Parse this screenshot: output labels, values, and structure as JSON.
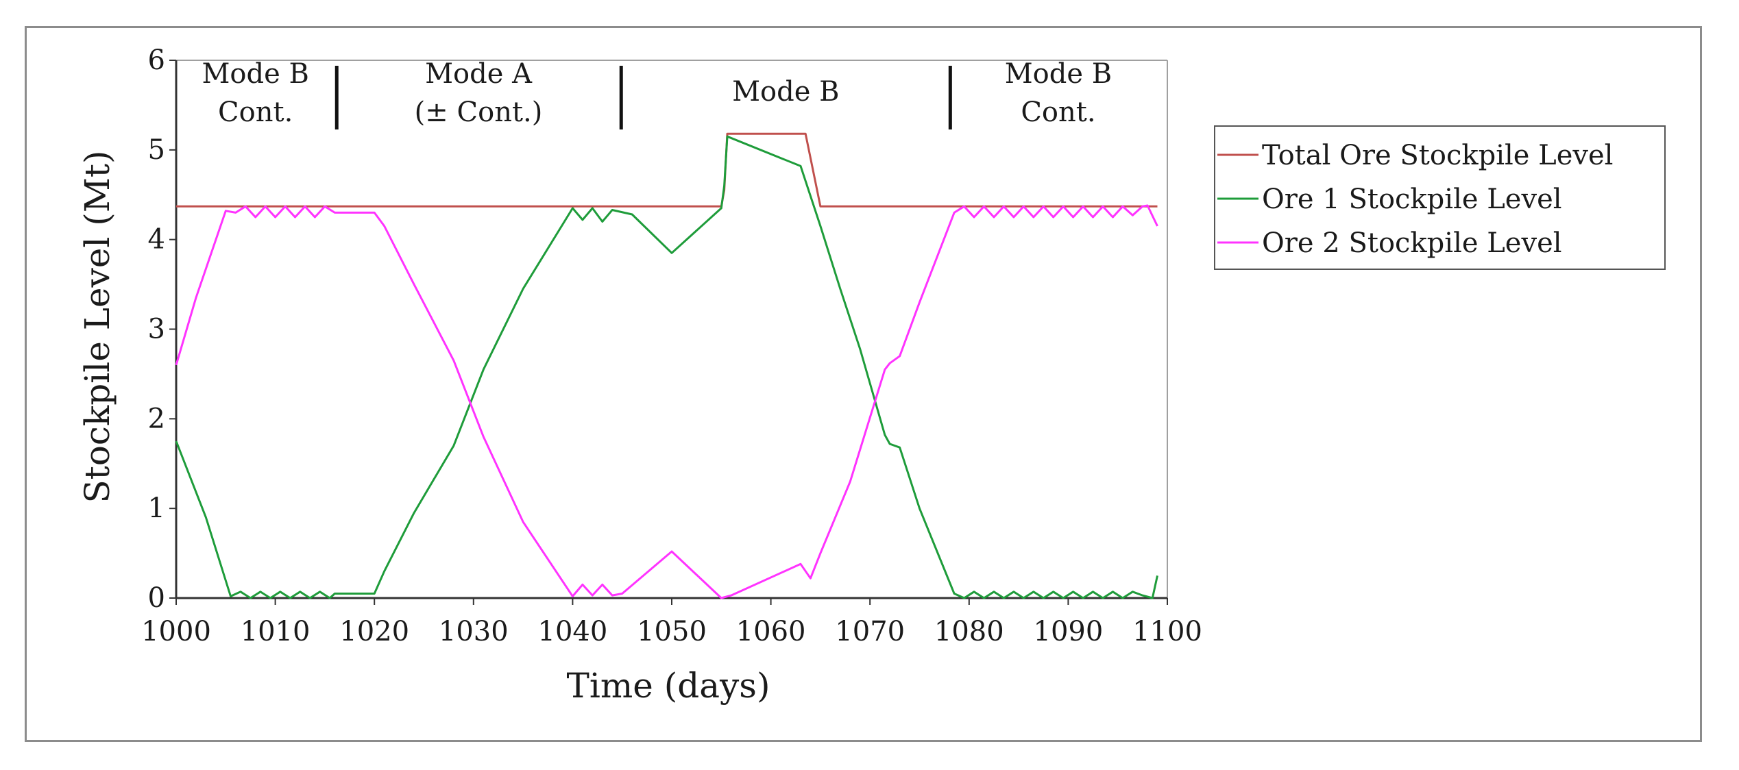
{
  "chart_data": {
    "type": "line",
    "xlabel": "Time (days)",
    "ylabel": "Stockpile Level (Mt)",
    "xlim": [
      1000,
      1100
    ],
    "ylim": [
      0,
      6
    ],
    "x_ticks": [
      1000,
      1010,
      1020,
      1030,
      1040,
      1050,
      1060,
      1070,
      1080,
      1090,
      1100
    ],
    "y_ticks": [
      0,
      1,
      2,
      3,
      4,
      5,
      6
    ],
    "legend_position": "right",
    "modes": [
      {
        "lines": [
          "Mode B",
          "Cont."
        ],
        "center": 1008
      },
      {
        "lines": [
          "Mode A",
          "(± Cont.)"
        ],
        "center": 1030.5
      },
      {
        "lines": [
          "Mode B"
        ],
        "center": 1061.5
      },
      {
        "lines": [
          "Mode B",
          "Cont."
        ],
        "center": 1089
      }
    ],
    "mode_dividers": [
      1016.2,
      1044.9,
      1078.1
    ],
    "series": [
      {
        "name": "Total Ore Stockpile Level",
        "color": "#c0504d",
        "points": [
          [
            1000,
            4.37
          ],
          [
            1055,
            4.37
          ],
          [
            1055.3,
            4.55
          ],
          [
            1055.6,
            5.18
          ],
          [
            1063.5,
            5.18
          ],
          [
            1065,
            4.37
          ],
          [
            1099,
            4.37
          ]
        ]
      },
      {
        "name": "Ore 1 Stockpile Level",
        "color": "#1e9c3a",
        "points": [
          [
            1000,
            1.75
          ],
          [
            1003,
            0.9
          ],
          [
            1005.5,
            0.02
          ],
          [
            1006.5,
            0.07
          ],
          [
            1007.5,
            0.0
          ],
          [
            1008.5,
            0.07
          ],
          [
            1009.5,
            0.0
          ],
          [
            1010.5,
            0.07
          ],
          [
            1011.5,
            0.0
          ],
          [
            1012.5,
            0.07
          ],
          [
            1013.5,
            0.0
          ],
          [
            1014.5,
            0.07
          ],
          [
            1015.5,
            0.0
          ],
          [
            1016,
            0.05
          ],
          [
            1020,
            0.05
          ],
          [
            1021,
            0.3
          ],
          [
            1024,
            0.95
          ],
          [
            1028,
            1.7
          ],
          [
            1031,
            2.55
          ],
          [
            1035,
            3.45
          ],
          [
            1040,
            4.35
          ],
          [
            1041,
            4.22
          ],
          [
            1042,
            4.35
          ],
          [
            1043,
            4.2
          ],
          [
            1044,
            4.33
          ],
          [
            1046,
            4.28
          ],
          [
            1050,
            3.85
          ],
          [
            1055,
            4.35
          ],
          [
            1055.3,
            4.6
          ],
          [
            1055.6,
            5.15
          ],
          [
            1063,
            4.82
          ],
          [
            1065,
            4.15
          ],
          [
            1067,
            3.45
          ],
          [
            1069,
            2.78
          ],
          [
            1071.5,
            1.82
          ],
          [
            1072,
            1.72
          ],
          [
            1073,
            1.68
          ],
          [
            1075,
            1.0
          ],
          [
            1078.5,
            0.05
          ],
          [
            1079.5,
            0.0
          ],
          [
            1080.5,
            0.07
          ],
          [
            1081.5,
            0.0
          ],
          [
            1082.5,
            0.07
          ],
          [
            1083.5,
            0.0
          ],
          [
            1084.5,
            0.07
          ],
          [
            1085.5,
            0.0
          ],
          [
            1086.5,
            0.07
          ],
          [
            1087.5,
            0.0
          ],
          [
            1088.5,
            0.07
          ],
          [
            1089.5,
            0.0
          ],
          [
            1090.5,
            0.07
          ],
          [
            1091.5,
            0.0
          ],
          [
            1092.5,
            0.07
          ],
          [
            1093.5,
            0.0
          ],
          [
            1094.5,
            0.07
          ],
          [
            1095.5,
            0.0
          ],
          [
            1096.5,
            0.07
          ],
          [
            1097.5,
            0.03
          ],
          [
            1098.5,
            0.0
          ],
          [
            1099,
            0.25
          ]
        ]
      },
      {
        "name": "Ore 2 Stockpile Level",
        "color": "#ff33ff",
        "points": [
          [
            1000,
            2.6
          ],
          [
            1002,
            3.35
          ],
          [
            1005,
            4.32
          ],
          [
            1006,
            4.3
          ],
          [
            1007,
            4.37
          ],
          [
            1008,
            4.25
          ],
          [
            1009,
            4.37
          ],
          [
            1010,
            4.25
          ],
          [
            1011,
            4.37
          ],
          [
            1012,
            4.25
          ],
          [
            1013,
            4.37
          ],
          [
            1014,
            4.25
          ],
          [
            1015,
            4.37
          ],
          [
            1016,
            4.3
          ],
          [
            1020,
            4.3
          ],
          [
            1021,
            4.15
          ],
          [
            1024,
            3.5
          ],
          [
            1028,
            2.65
          ],
          [
            1031,
            1.8
          ],
          [
            1035,
            0.85
          ],
          [
            1040,
            0.02
          ],
          [
            1041,
            0.15
          ],
          [
            1042,
            0.03
          ],
          [
            1043,
            0.15
          ],
          [
            1044,
            0.03
          ],
          [
            1045,
            0.05
          ],
          [
            1050,
            0.52
          ],
          [
            1055,
            0.0
          ],
          [
            1056,
            0.03
          ],
          [
            1063,
            0.38
          ],
          [
            1064,
            0.22
          ],
          [
            1065,
            0.5
          ],
          [
            1068,
            1.3
          ],
          [
            1071.5,
            2.55
          ],
          [
            1072,
            2.62
          ],
          [
            1073,
            2.7
          ],
          [
            1075,
            3.3
          ],
          [
            1078.5,
            4.3
          ],
          [
            1079.5,
            4.37
          ],
          [
            1080.5,
            4.25
          ],
          [
            1081.5,
            4.37
          ],
          [
            1082.5,
            4.25
          ],
          [
            1083.5,
            4.37
          ],
          [
            1084.5,
            4.25
          ],
          [
            1085.5,
            4.37
          ],
          [
            1086.5,
            4.25
          ],
          [
            1087.5,
            4.37
          ],
          [
            1088.5,
            4.25
          ],
          [
            1089.5,
            4.37
          ],
          [
            1090.5,
            4.25
          ],
          [
            1091.5,
            4.37
          ],
          [
            1092.5,
            4.25
          ],
          [
            1093.5,
            4.37
          ],
          [
            1094.5,
            4.25
          ],
          [
            1095.5,
            4.37
          ],
          [
            1096.5,
            4.27
          ],
          [
            1097.5,
            4.37
          ],
          [
            1098,
            4.38
          ],
          [
            1099,
            4.15
          ]
        ]
      }
    ]
  }
}
